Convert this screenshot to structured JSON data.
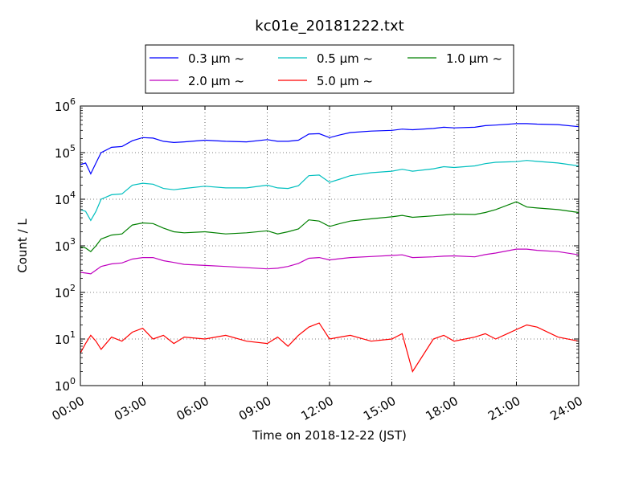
{
  "chart_data": {
    "type": "line",
    "title": "kc01e_20181222.txt",
    "xlabel": "Time on 2018-12-22 (JST)",
    "ylabel": "Count / L",
    "x_ticks": [
      "00:00",
      "03:00",
      "06:00",
      "09:00",
      "12:00",
      "15:00",
      "18:00",
      "21:00",
      "24:00"
    ],
    "xlim": [
      "00:00",
      "24:00"
    ],
    "y_scale": "log",
    "ylim": [
      1,
      1000000
    ],
    "y_ticks": [
      {
        "base": "10",
        "exp": "0"
      },
      {
        "base": "10",
        "exp": "1"
      },
      {
        "base": "10",
        "exp": "2"
      },
      {
        "base": "10",
        "exp": "3"
      },
      {
        "base": "10",
        "exp": "4"
      },
      {
        "base": "10",
        "exp": "5"
      },
      {
        "base": "10",
        "exp": "6"
      }
    ],
    "grid": true,
    "legend_position": "top-center",
    "x": [
      "00:00",
      "00:15",
      "00:30",
      "00:45",
      "01:00",
      "01:30",
      "02:00",
      "02:30",
      "03:00",
      "03:30",
      "04:00",
      "04:30",
      "05:00",
      "06:00",
      "07:00",
      "08:00",
      "09:00",
      "09:30",
      "10:00",
      "10:30",
      "11:00",
      "11:30",
      "12:00",
      "12:30",
      "13:00",
      "14:00",
      "15:00",
      "15:30",
      "16:00",
      "17:00",
      "17:30",
      "18:00",
      "19:00",
      "19:30",
      "20:00",
      "21:00",
      "21:30",
      "22:00",
      "23:00",
      "24:00"
    ],
    "series": [
      {
        "name": "0.3 μm ~",
        "color": "#0000ff",
        "values": [
          55000,
          60000,
          35000,
          60000,
          100000,
          130000,
          135000,
          180000,
          210000,
          205000,
          175000,
          165000,
          170000,
          185000,
          175000,
          170000,
          190000,
          175000,
          175000,
          185000,
          250000,
          255000,
          210000,
          240000,
          270000,
          290000,
          300000,
          320000,
          310000,
          330000,
          350000,
          340000,
          350000,
          380000,
          390000,
          420000,
          420000,
          410000,
          400000,
          360000
        ]
      },
      {
        "name": "0.5 μm ~",
        "color": "#00bfbf",
        "values": [
          6000,
          5500,
          3500,
          5500,
          10000,
          12500,
          13000,
          20000,
          22000,
          21000,
          17000,
          16000,
          17000,
          19000,
          17500,
          17500,
          20000,
          17500,
          17000,
          19500,
          32000,
          33000,
          23000,
          27000,
          32000,
          37000,
          40000,
          44000,
          40000,
          45000,
          50000,
          48000,
          52000,
          58000,
          62000,
          64000,
          68000,
          65000,
          60000,
          52000
        ]
      },
      {
        "name": "1.0 μm ~",
        "color": "#008000",
        "values": [
          950,
          900,
          750,
          1000,
          1400,
          1700,
          1800,
          2800,
          3100,
          3000,
          2400,
          2000,
          1900,
          2000,
          1800,
          1900,
          2100,
          1800,
          2000,
          2300,
          3600,
          3400,
          2600,
          3000,
          3400,
          3800,
          4200,
          4500,
          4100,
          4400,
          4600,
          4800,
          4700,
          5200,
          6000,
          8800,
          6800,
          6500,
          6000,
          5200
        ]
      },
      {
        "name": "2.0 μm ~",
        "color": "#bf00bf",
        "values": [
          270,
          260,
          250,
          300,
          360,
          410,
          430,
          520,
          560,
          560,
          480,
          440,
          400,
          380,
          360,
          340,
          320,
          330,
          360,
          420,
          540,
          560,
          500,
          530,
          560,
          590,
          620,
          640,
          560,
          580,
          600,
          610,
          580,
          650,
          700,
          850,
          850,
          800,
          750,
          640
        ]
      },
      {
        "name": "5.0 μm ~",
        "color": "#ff0000",
        "values": [
          5,
          8,
          12,
          9,
          6,
          11,
          9,
          14,
          17,
          10,
          12,
          8,
          11,
          10,
          12,
          9,
          8,
          11,
          7,
          12,
          18,
          22,
          10,
          11,
          12,
          9,
          10,
          13,
          2,
          10,
          12,
          9,
          11,
          13,
          10,
          16,
          20,
          18,
          11,
          9
        ]
      }
    ]
  }
}
